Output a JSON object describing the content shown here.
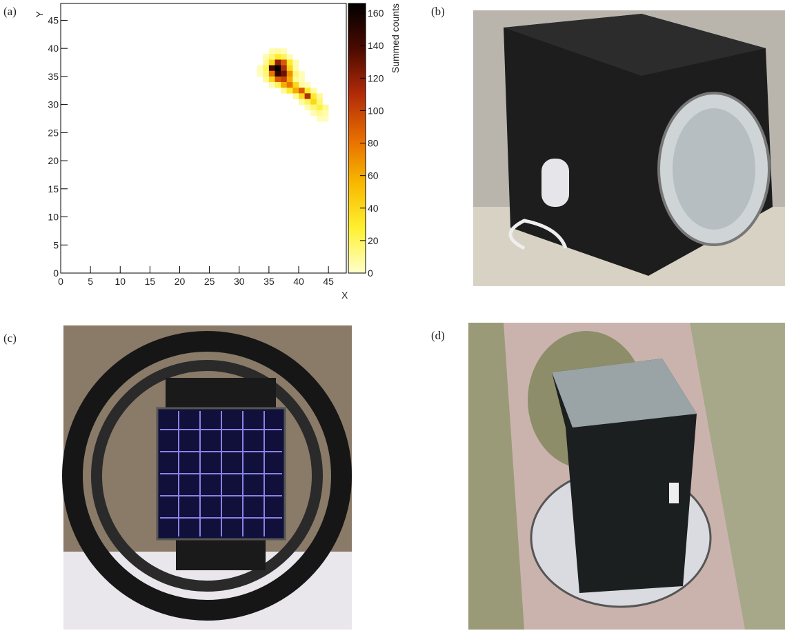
{
  "panel_labels": [
    "(a)",
    "(b)",
    "(c)",
    "(d)"
  ],
  "chart_data": {
    "type": "heatmap",
    "xlabel": "X",
    "ylabel": "Y",
    "colorbar_label": "Summed counts",
    "xlim": [
      0,
      48
    ],
    "ylim": [
      0,
      48
    ],
    "zlim": [
      0,
      166
    ],
    "xticks": [
      0,
      5,
      10,
      15,
      20,
      25,
      30,
      35,
      40,
      45
    ],
    "yticks": [
      0,
      5,
      10,
      15,
      20,
      25,
      30,
      35,
      40,
      45
    ],
    "zticks": [
      0,
      20,
      40,
      60,
      80,
      100,
      120,
      140,
      160
    ],
    "colormap": [
      "#ffffcc",
      "#fff030",
      "#f8b800",
      "#e66c00",
      "#b02a08",
      "#4a0a00",
      "#000000"
    ],
    "x": [
      35,
      36,
      37,
      34,
      35,
      36,
      37,
      38,
      34,
      35,
      36,
      37,
      38,
      39,
      33,
      34,
      35,
      36,
      37,
      38,
      39,
      33,
      34,
      35,
      36,
      37,
      38,
      39,
      40,
      34,
      35,
      36,
      37,
      38,
      39,
      40,
      35,
      36,
      37,
      38,
      39,
      40,
      41,
      37,
      38,
      39,
      40,
      41,
      42,
      39,
      40,
      41,
      42,
      43,
      40,
      41,
      42,
      43,
      41,
      42,
      43,
      44,
      42,
      43,
      44,
      43,
      44
    ],
    "y": [
      39,
      39,
      39,
      38,
      38,
      38,
      38,
      38,
      37,
      37,
      37,
      37,
      37,
      37,
      36,
      36,
      36,
      36,
      36,
      36,
      36,
      35,
      35,
      35,
      35,
      35,
      35,
      35,
      35,
      34,
      34,
      34,
      34,
      34,
      34,
      34,
      33,
      33,
      33,
      33,
      33,
      33,
      33,
      32,
      32,
      32,
      32,
      32,
      32,
      31,
      31,
      31,
      31,
      31,
      30,
      30,
      30,
      30,
      29,
      29,
      29,
      29,
      28,
      28,
      28,
      27,
      27
    ],
    "values": [
      5,
      8,
      4,
      6,
      15,
      30,
      20,
      5,
      10,
      40,
      120,
      90,
      30,
      5,
      4,
      20,
      140,
      165,
      110,
      40,
      6,
      3,
      15,
      80,
      150,
      130,
      70,
      15,
      3,
      10,
      40,
      90,
      100,
      60,
      10,
      4,
      5,
      20,
      60,
      80,
      40,
      8,
      3,
      10,
      30,
      60,
      90,
      30,
      8,
      10,
      40,
      110,
      30,
      10,
      8,
      20,
      40,
      15,
      5,
      15,
      25,
      10,
      5,
      10,
      6,
      4,
      3
    ]
  }
}
